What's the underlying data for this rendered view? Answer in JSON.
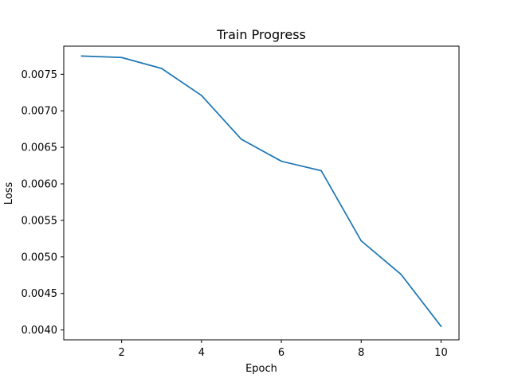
{
  "chart_data": {
    "type": "line",
    "title": "Train Progress",
    "xlabel": "Epoch",
    "ylabel": "Loss",
    "xlim": [
      0.55,
      10.45
    ],
    "ylim": [
      0.003865,
      0.007885
    ],
    "xticks": [
      2,
      4,
      6,
      8,
      10
    ],
    "xtick_labels": [
      "2",
      "4",
      "6",
      "8",
      "10"
    ],
    "yticks": [
      0.004,
      0.0045,
      0.005,
      0.0055,
      0.006,
      0.0065,
      0.007,
      0.0075
    ],
    "ytick_labels": [
      "0.0040",
      "0.0045",
      "0.0050",
      "0.0055",
      "0.0060",
      "0.0065",
      "0.0070",
      "0.0075"
    ],
    "grid": false,
    "series": [
      {
        "x": [
          1,
          2,
          3,
          4,
          5,
          6,
          7,
          8,
          9,
          10
        ],
        "values": [
          0.00775,
          0.00773,
          0.00758,
          0.00721,
          0.00661,
          0.00631,
          0.00618,
          0.00522,
          0.00476,
          0.00405
        ],
        "color": "#1f77b4"
      }
    ]
  }
}
